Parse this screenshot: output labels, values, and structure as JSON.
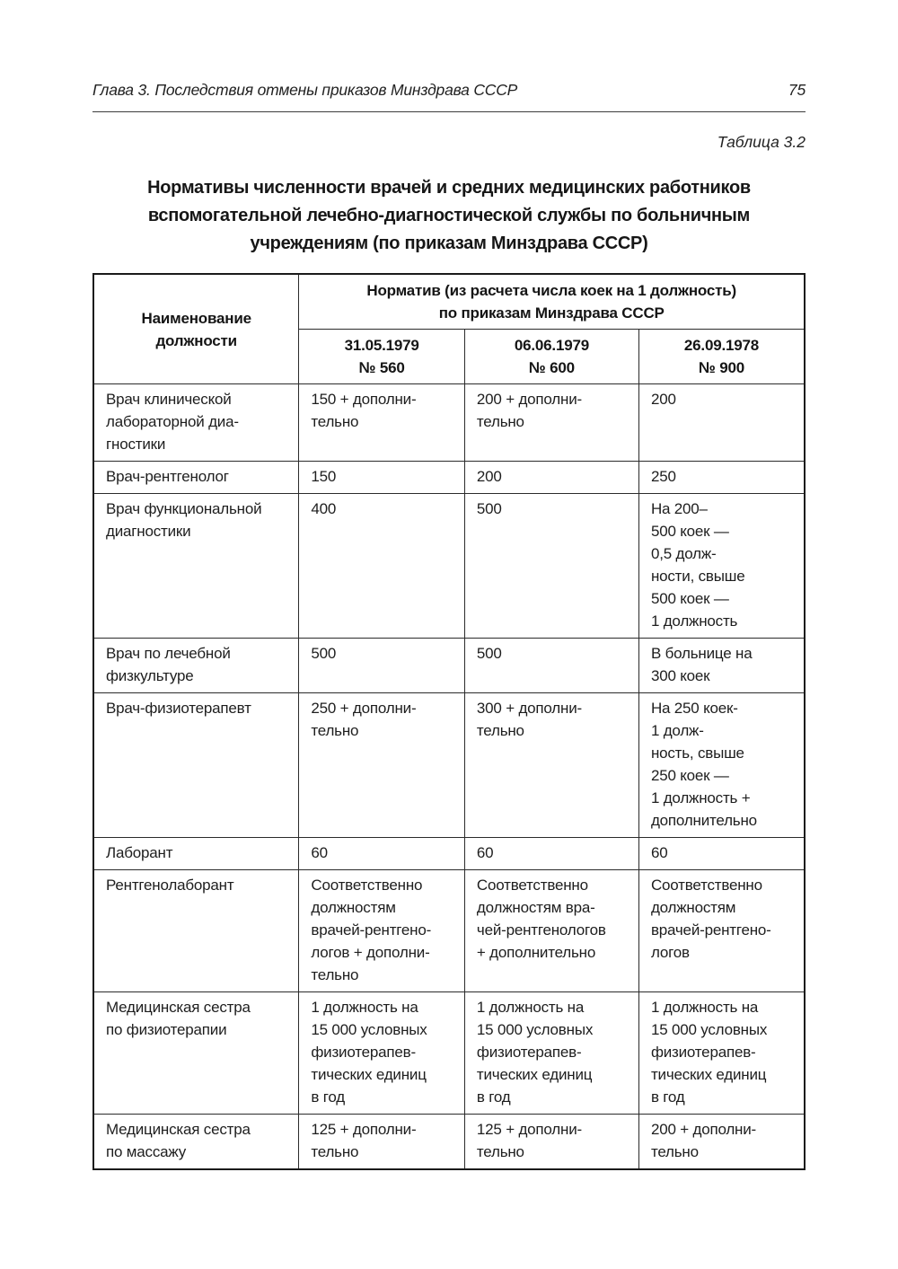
{
  "page": {
    "running_header": "Глава 3. Последствия отмены приказов Минздрава СССР",
    "page_number": "75",
    "table_caption": "Таблица 3.2",
    "title": "Нормативы численности врачей и средних медицинских работников\nвспомогательной лечебно-диагностической службы по больничным\nучреждениям (по приказам Минздрава СССР)"
  },
  "table": {
    "col1_header": "Наименование\nдолжности",
    "span_header": "Норматив (из расчета числа коек на 1 должность)\nпо приказам Минздрава СССР",
    "sub_headers": [
      "31.05.1979\n№ 560",
      "06.06.1979\n№ 600",
      "26.09.1978\n№ 900"
    ],
    "rows": [
      {
        "name": "Врач клинической\nлабораторной диа-\nгностики",
        "values": [
          "150 + дополни-\nтельно",
          "200 + дополни-\nтельно",
          "200"
        ]
      },
      {
        "name": "Врач-рентгенолог",
        "values": [
          "150",
          "200",
          "250"
        ]
      },
      {
        "name": "Врач функциональной\nдиагностики",
        "values": [
          "400",
          "500",
          "На 200–\n500 коек —\n0,5 долж-\nности, свыше\n500 коек —\n1 должность"
        ]
      },
      {
        "name": "Врач по лечебной\nфизкультуре",
        "values": [
          "500",
          "500",
          "В больнице на\n300 коек"
        ]
      },
      {
        "name": "Врач-физиотерапевт",
        "values": [
          "250 + дополни-\nтельно",
          "300 + дополни-\nтельно",
          "На 250 коек-\n1 долж-\nность, свыше\n250 коек —\n1 должность +\nдополнительно"
        ]
      },
      {
        "name": "Лаборант",
        "values": [
          "60",
          "60",
          "60"
        ]
      },
      {
        "name": "Рентгенолаборант",
        "values": [
          "Соответственно\nдолжностям\nврачей-рентгено-\nлогов + дополни-\nтельно",
          "Соответственно\nдолжностям вра-\nчей-рентгенологов\n+ дополнительно",
          "Соответственно\nдолжностям\nврачей-рентгено-\nлогов"
        ]
      },
      {
        "name": "Медицинская сестра\nпо физиотерапии",
        "values": [
          "1 должность на\n15 000 условных\nфизиотерапев-\nтических единиц\nв год",
          "1 должность на\n15 000 условных\nфизиотерапев-\nтических единиц\nв год",
          "1 должность на\n15 000 условных\nфизиотерапев-\nтических единиц\nв год"
        ]
      },
      {
        "name": "Медицинская сестра\nпо массажу",
        "values": [
          "125 + дополни-\nтельно",
          "125 + дополни-\nтельно",
          "200 + дополни-\nтельно"
        ]
      }
    ]
  }
}
